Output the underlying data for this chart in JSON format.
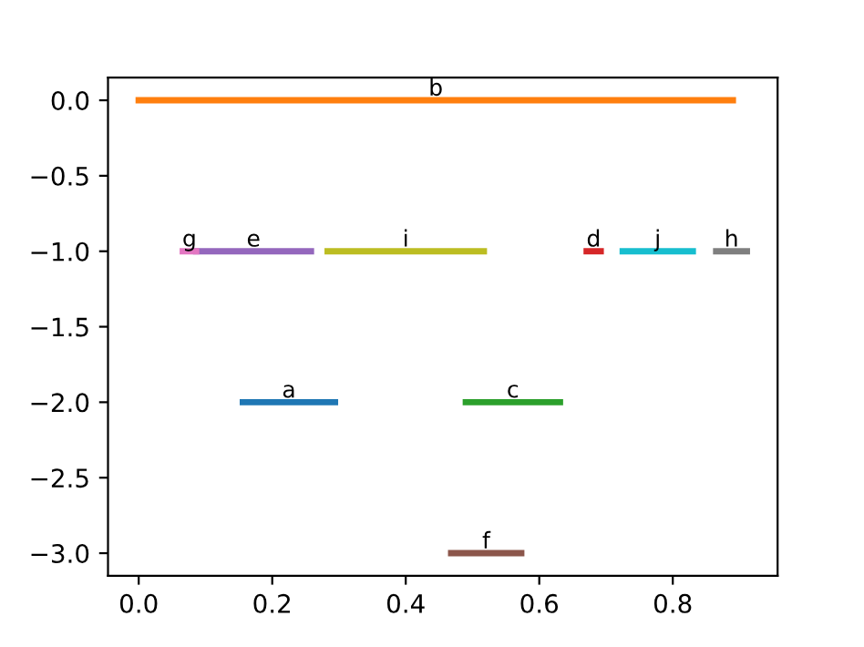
{
  "chart_data": {
    "type": "line",
    "legend": false,
    "grid": false,
    "marker": "none",
    "line_style": "solid",
    "xlim": [
      -0.046,
      0.957
    ],
    "ylim": [
      -3.15,
      0.15
    ],
    "xticks": [
      {
        "value": 0,
        "label": "0.0"
      },
      {
        "value": 0.2,
        "label": "0.2"
      },
      {
        "value": 0.4,
        "label": "0.4"
      },
      {
        "value": 0.6,
        "label": "0.6"
      },
      {
        "value": 0.8,
        "label": "0.8"
      }
    ],
    "yticks": [
      {
        "value": 0,
        "label": "0.0"
      },
      {
        "value": -0.5,
        "label": "−0.5"
      },
      {
        "value": -1,
        "label": "−1.0"
      },
      {
        "value": -1.5,
        "label": "−1.5"
      },
      {
        "value": -2,
        "label": "−2.0"
      },
      {
        "value": -2.5,
        "label": "−2.5"
      },
      {
        "value": -3,
        "label": "−3.0"
      }
    ],
    "series": [
      {
        "name": "a",
        "color": "#1f77b4",
        "x": [
          0.156,
          0.294
        ],
        "values": [
          -2,
          -2
        ]
      },
      {
        "name": "b",
        "color": "#ff7f0e",
        "x": [
          0.0,
          0.89
        ],
        "values": [
          0,
          0
        ]
      },
      {
        "name": "c",
        "color": "#2ca02c",
        "x": [
          0.49,
          0.631
        ],
        "values": [
          -2,
          -2
        ]
      },
      {
        "name": "d",
        "color": "#d62728",
        "x": [
          0.671,
          0.692
        ],
        "values": [
          -1,
          -1
        ]
      },
      {
        "name": "e",
        "color": "#9467bd",
        "x": [
          0.086,
          0.258
        ],
        "values": [
          -1,
          -1
        ]
      },
      {
        "name": "f",
        "color": "#8c564b",
        "x": [
          0.468,
          0.573
        ],
        "values": [
          -3,
          -3
        ]
      },
      {
        "name": "g",
        "color": "#e377c2",
        "x": [
          0.066,
          0.086
        ],
        "values": [
          -1,
          -1
        ]
      },
      {
        "name": "h",
        "color": "#7f7f7f",
        "x": [
          0.865,
          0.911
        ],
        "values": [
          -1,
          -1
        ]
      },
      {
        "name": "i",
        "color": "#bcbd22",
        "x": [
          0.283,
          0.517
        ],
        "values": [
          -1,
          -1
        ]
      },
      {
        "name": "j",
        "color": "#17becf",
        "x": [
          0.725,
          0.83
        ],
        "values": [
          -1,
          -1
        ]
      }
    ]
  }
}
